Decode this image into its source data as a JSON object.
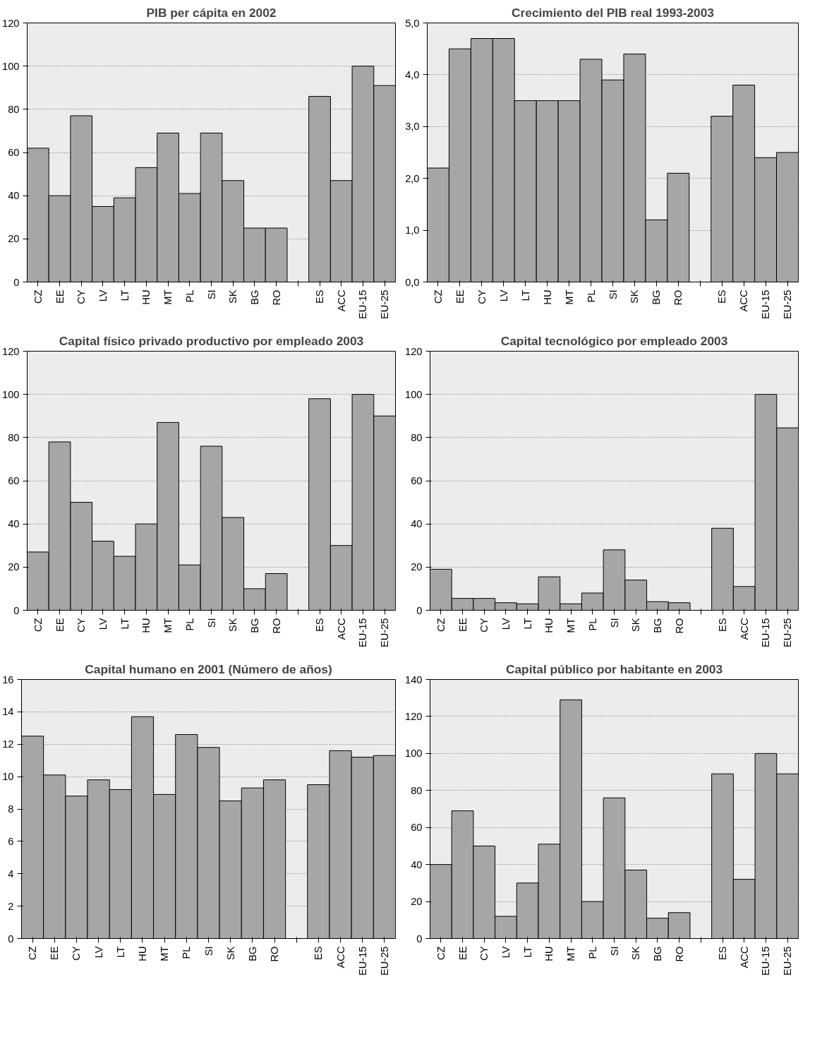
{
  "chart_data": [
    {
      "type": "bar",
      "title": "PIB per cápita en 2002",
      "categories": [
        "CZ",
        "EE",
        "CY",
        "LV",
        "LT",
        "HU",
        "MT",
        "PL",
        "SI",
        "SK",
        "BG",
        "RO",
        null,
        "ES",
        "ACC",
        "EU-15",
        "EU-25"
      ],
      "values": [
        62,
        40,
        77,
        35,
        39,
        53,
        69,
        41,
        69,
        47,
        25,
        25,
        null,
        86,
        47,
        100,
        91
      ],
      "color": "#a6a6a6",
      "ylim": [
        0,
        120
      ],
      "yticks": [
        0,
        20,
        40,
        60,
        80,
        100,
        120
      ],
      "grid": "y"
    },
    {
      "type": "bar",
      "title": "Crecimiento del PIB real 1993-2003",
      "categories": [
        "CZ",
        "EE",
        "CY",
        "LV",
        "LT",
        "HU",
        "MT",
        "PL",
        "SI",
        "SK",
        "BG",
        "RO",
        null,
        "ES",
        "ACC",
        "EU-15",
        "EU-25"
      ],
      "values": [
        2.2,
        4.5,
        4.7,
        4.7,
        3.5,
        3.5,
        3.5,
        4.3,
        3.9,
        4.4,
        1.2,
        2.1,
        null,
        3.2,
        3.8,
        2.4,
        2.5
      ],
      "color": "#a6a6a6",
      "ylim": [
        0,
        5
      ],
      "yticks": [
        {
          "value": 0,
          "label": "0,0"
        },
        {
          "value": 1,
          "label": "1,0"
        },
        {
          "value": 2,
          "label": "2,0"
        },
        {
          "value": 3,
          "label": "3,0"
        },
        {
          "value": 4,
          "label": "4,0"
        },
        {
          "value": 5,
          "label": "5,0"
        }
      ],
      "grid": "y"
    },
    {
      "type": "bar",
      "title": "Capital físico privado productivo por empleado 2003",
      "categories": [
        "CZ",
        "EE",
        "CY",
        "LV",
        "LT",
        "HU",
        "MT",
        "PL",
        "SI",
        "SK",
        "BG",
        "RO",
        null,
        "ES",
        "ACC",
        "EU-15",
        "EU-25"
      ],
      "values": [
        27,
        78,
        50,
        32,
        25,
        40,
        87,
        21,
        76,
        43,
        10,
        17,
        null,
        98,
        30,
        100,
        90
      ],
      "color": "#a6a6a6",
      "ylim": [
        0,
        120
      ],
      "yticks": [
        0,
        20,
        40,
        60,
        80,
        100,
        120
      ],
      "grid": "y"
    },
    {
      "type": "bar",
      "title": "Capital tecnológico por empleado 2003",
      "categories": [
        "CZ",
        "EE",
        "CY",
        "LV",
        "LT",
        "HU",
        "MT",
        "PL",
        "SI",
        "SK",
        "BG",
        "RO",
        null,
        "ES",
        "ACC",
        "EU-15",
        "EU-25"
      ],
      "values": [
        19,
        5.5,
        5.5,
        3.5,
        3,
        15.5,
        3,
        8,
        28,
        14,
        4,
        3.5,
        null,
        38,
        11,
        100,
        84.5
      ],
      "color": "#a6a6a6",
      "ylim": [
        0,
        120
      ],
      "yticks": [
        0,
        20,
        40,
        60,
        80,
        100,
        120
      ],
      "grid": "y"
    },
    {
      "type": "bar",
      "title": "Capital humano en 2001 (Número de años)",
      "categories": [
        "CZ",
        "EE",
        "CY",
        "LV",
        "LT",
        "HU",
        "MT",
        "PL",
        "SI",
        "SK",
        "BG",
        "RO",
        null,
        "ES",
        "ACC",
        "EU-15",
        "EU-25"
      ],
      "values": [
        12.5,
        10.1,
        8.8,
        9.8,
        9.2,
        13.7,
        8.9,
        12.6,
        11.8,
        8.5,
        9.3,
        9.8,
        null,
        9.5,
        11.6,
        11.2,
        11.3
      ],
      "color": "#a6a6a6",
      "ylim": [
        0,
        16
      ],
      "yticks": [
        0,
        2,
        4,
        6,
        8,
        10,
        12,
        14,
        16
      ],
      "grid": "y"
    },
    {
      "type": "bar",
      "title": "Capital público por habitante en 2003",
      "categories": [
        "CZ",
        "EE",
        "CY",
        "LV",
        "LT",
        "HU",
        "MT",
        "PL",
        "SI",
        "SK",
        "BG",
        "RO",
        null,
        "ES",
        "ACC",
        "EU-15",
        "EU-25"
      ],
      "values": [
        40,
        69,
        50,
        12,
        30,
        51,
        129,
        20,
        76,
        37,
        11,
        14,
        null,
        89,
        32,
        100,
        89
      ],
      "color": "#a6a6a6",
      "ylim": [
        0,
        140
      ],
      "yticks": [
        0,
        20,
        40,
        60,
        80,
        100,
        120,
        140
      ],
      "grid": "y"
    }
  ]
}
